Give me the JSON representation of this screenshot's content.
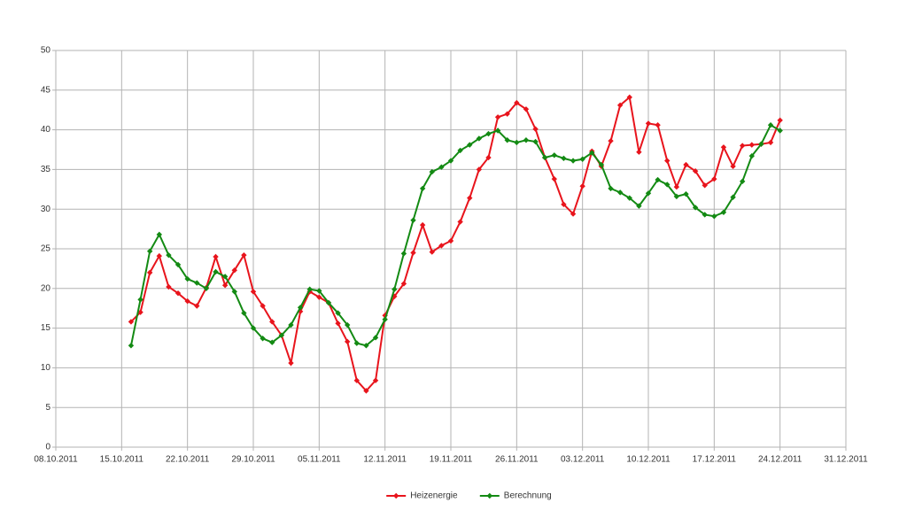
{
  "chart_data": {
    "type": "line",
    "x": [
      "2011-10-16",
      "2011-10-17",
      "2011-10-18",
      "2011-10-19",
      "2011-10-20",
      "2011-10-21",
      "2011-10-22",
      "2011-10-23",
      "2011-10-24",
      "2011-10-25",
      "2011-10-26",
      "2011-10-27",
      "2011-10-28",
      "2011-10-29",
      "2011-10-30",
      "2011-10-31",
      "2011-11-01",
      "2011-11-02",
      "2011-11-03",
      "2011-11-04",
      "2011-11-05",
      "2011-11-06",
      "2011-11-07",
      "2011-11-08",
      "2011-11-09",
      "2011-11-10",
      "2011-11-11",
      "2011-11-12",
      "2011-11-13",
      "2011-11-14",
      "2011-11-15",
      "2011-11-16",
      "2011-11-17",
      "2011-11-18",
      "2011-11-19",
      "2011-11-20",
      "2011-11-21",
      "2011-11-22",
      "2011-11-23",
      "2011-11-24",
      "2011-11-25",
      "2011-11-26",
      "2011-11-27",
      "2011-11-28",
      "2011-11-29",
      "2011-11-30",
      "2011-12-01",
      "2011-12-02",
      "2011-12-03",
      "2011-12-04",
      "2011-12-05",
      "2011-12-06",
      "2011-12-07",
      "2011-12-08",
      "2011-12-09",
      "2011-12-10",
      "2011-12-11",
      "2011-12-12",
      "2011-12-13",
      "2011-12-14",
      "2011-12-15",
      "2011-12-16",
      "2011-12-17",
      "2011-12-18",
      "2011-12-19",
      "2011-12-20",
      "2011-12-21",
      "2011-12-22",
      "2011-12-23",
      "2011-12-24"
    ],
    "series": [
      {
        "name": "Heizenergie",
        "color": "#e8141c",
        "values": [
          15.8,
          17,
          22,
          24.1,
          20.2,
          19.4,
          18.4,
          17.8,
          20.1,
          24,
          20.4,
          22.3,
          24.2,
          19.6,
          17.8,
          15.8,
          14.1,
          10.6,
          17.1,
          19.6,
          18.9,
          18.2,
          15.6,
          13.3,
          8.4,
          7.1,
          8.4,
          16.6,
          19,
          20.6,
          24.5,
          28,
          24.6,
          25.4,
          26,
          28.4,
          31.4,
          35,
          36.5,
          41.6,
          42,
          43.4,
          42.6,
          40.1,
          36.5,
          33.8,
          30.6,
          29.4,
          32.9,
          37.3,
          35.4,
          38.6,
          43.1,
          44.1,
          37.2,
          40.8,
          40.6,
          36.1,
          32.8,
          35.6,
          34.8,
          33,
          33.8,
          37.8,
          35.4,
          38,
          38.1,
          38.2,
          38.4,
          41.2
        ]
      },
      {
        "name": "Berechnung",
        "color": "#138a13",
        "values": [
          12.8,
          18.6,
          24.7,
          26.8,
          24.2,
          23,
          21.2,
          20.7,
          20,
          22.1,
          21.5,
          19.6,
          16.9,
          15,
          13.7,
          13.2,
          14.1,
          15.4,
          17.6,
          19.9,
          19.7,
          18.2,
          16.9,
          15.4,
          13.1,
          12.8,
          13.8,
          16.1,
          19.9,
          24.4,
          28.6,
          32.6,
          34.7,
          35.3,
          36.1,
          37.4,
          38.1,
          38.9,
          39.5,
          39.9,
          38.7,
          38.4,
          38.7,
          38.5,
          36.5,
          36.8,
          36.4,
          36.1,
          36.3,
          37.1,
          35.6,
          32.6,
          32.1,
          31.4,
          30.4,
          32,
          33.7,
          33.1,
          31.6,
          31.9,
          30.2,
          29.3,
          29.1,
          29.6,
          31.5,
          33.5,
          36.7,
          38.2,
          40.6,
          39.9
        ]
      }
    ],
    "xlim": [
      "2011-10-08",
      "2011-12-31"
    ],
    "xticks": [
      {
        "value": "2011-10-08",
        "label": "08.10.2011"
      },
      {
        "value": "2011-10-15",
        "label": "15.10.2011"
      },
      {
        "value": "2011-10-22",
        "label": "22.10.2011"
      },
      {
        "value": "2011-10-29",
        "label": "29.10.2011"
      },
      {
        "value": "2011-11-05",
        "label": "05.11.2011"
      },
      {
        "value": "2011-11-12",
        "label": "12.11.2011"
      },
      {
        "value": "2011-11-19",
        "label": "19.11.2011"
      },
      {
        "value": "2011-11-26",
        "label": "26.11.2011"
      },
      {
        "value": "2011-12-03",
        "label": "03.12.2011"
      },
      {
        "value": "2011-12-10",
        "label": "10.12.2011"
      },
      {
        "value": "2011-12-17",
        "label": "17.12.2011"
      },
      {
        "value": "2011-12-24",
        "label": "24.12.2011"
      },
      {
        "value": "2011-12-31",
        "label": "31.12.2011"
      }
    ],
    "ylim": [
      0,
      50
    ],
    "yticks": [
      0,
      5,
      10,
      15,
      20,
      25,
      30,
      35,
      40,
      45,
      50
    ],
    "grid": true,
    "legend": "bottom"
  }
}
